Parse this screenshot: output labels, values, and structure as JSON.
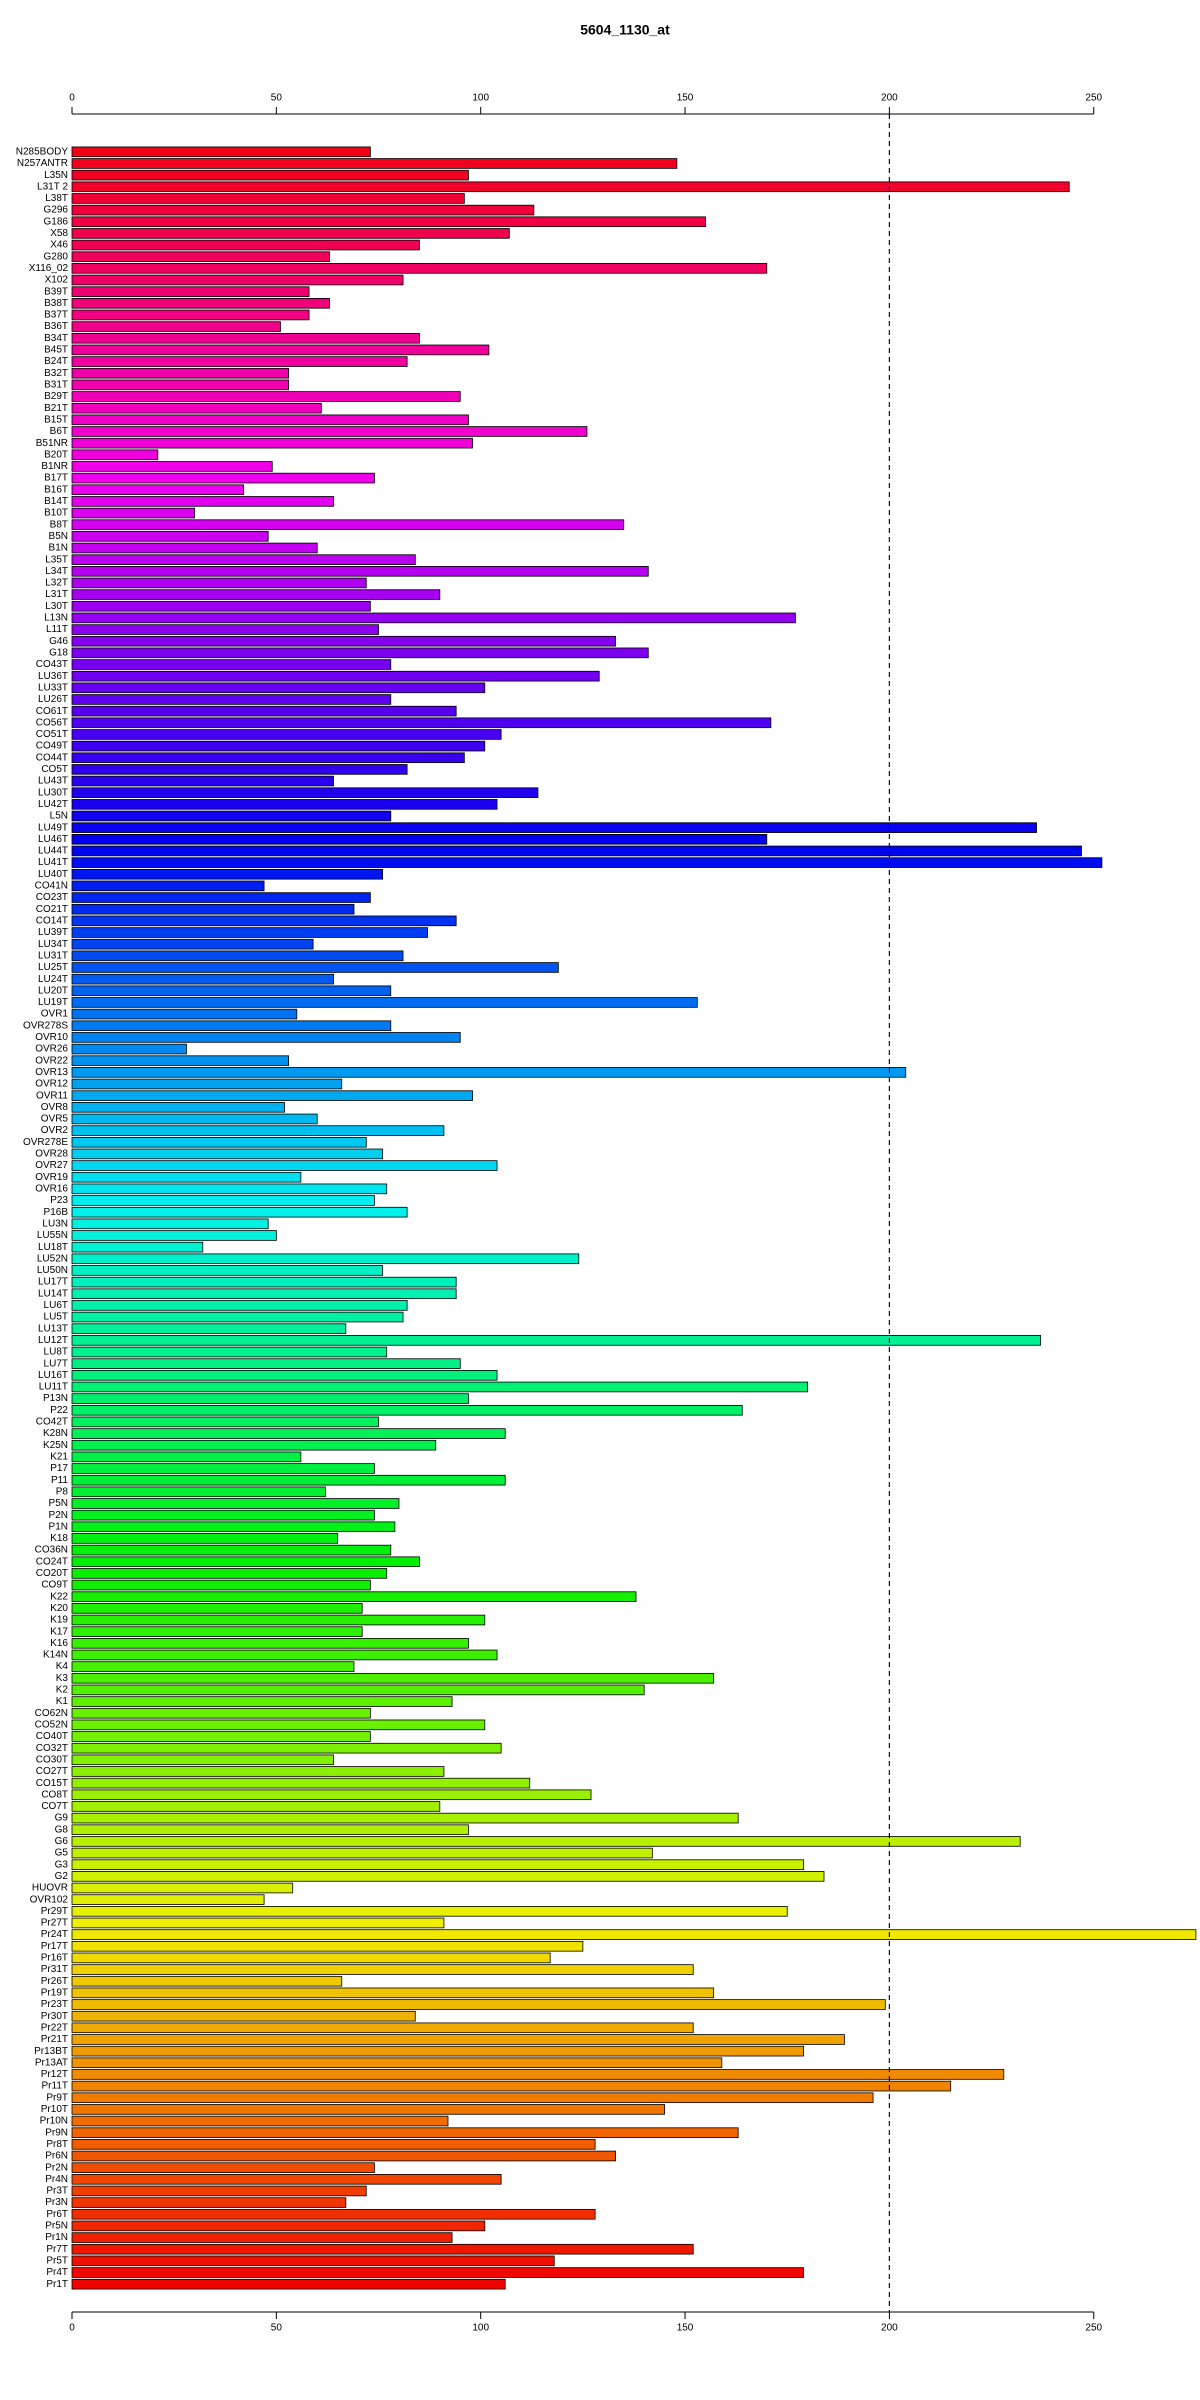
{
  "chart_data": {
    "type": "barh",
    "title": "5604_1130_at",
    "categories": [
      "N285BODY",
      "N257ANTR",
      "L35N",
      "L31T 2",
      "L38T",
      "G296",
      "G186",
      "X58",
      "X46",
      "G280",
      "X116_02",
      "X102",
      "B39T",
      "B38T",
      "B37T",
      "B36T",
      "B34T",
      "B45T",
      "B24T",
      "B32T",
      "B31T",
      "B29T",
      "B21T",
      "B15T",
      "B6T",
      "B51NR",
      "B20T",
      "B1NR",
      "B17T",
      "B16T",
      "B14T",
      "B10T",
      "B8T",
      "B5N",
      "B1N",
      "L35T",
      "L34T",
      "L32T",
      "L31T",
      "L30T",
      "L13N",
      "L11T",
      "G46",
      "G18",
      "CO43T",
      "LU36T",
      "LU33T",
      "LU26T",
      "CO61T",
      "CO56T",
      "CO51T",
      "CO49T",
      "CO44T",
      "CO5T",
      "LU43T",
      "LU30T",
      "LU42T",
      "L5N",
      "LU49T",
      "LU46T",
      "LU44T",
      "LU41T",
      "LU40T",
      "CO41N",
      "CO23T",
      "CO21T",
      "CO14T",
      "LU39T",
      "LU34T",
      "LU31T",
      "LU25T",
      "LU24T",
      "LU20T",
      "LU19T",
      "OVR1",
      "OVR278S",
      "OVR10",
      "OVR26",
      "OVR22",
      "OVR13",
      "OVR12",
      "OVR11",
      "OVR8",
      "OVR5",
      "OVR2",
      "OVR278E",
      "OVR28",
      "OVR27",
      "OVR19",
      "OVR16",
      "P23",
      "P16B",
      "LU3N",
      "LU55N",
      "LU18T",
      "LU52N",
      "LU50N",
      "LU17T",
      "LU14T",
      "LU6T",
      "LU5T",
      "LU13T",
      "LU12T",
      "LU8T",
      "LU7T",
      "LU16T",
      "LU11T",
      "P13N",
      "P22",
      "CO42T",
      "K28N",
      "K25N",
      "K21",
      "P17",
      "P11",
      "P8",
      "P5N",
      "P2N",
      "P1N",
      "K18",
      "CO36N",
      "CO24T",
      "CO20T",
      "CO9T",
      "K22",
      "K20",
      "K19",
      "K17",
      "K16",
      "K14N",
      "K4",
      "K3",
      "K2",
      "K1",
      "CO62N",
      "CO52N",
      "CO40T",
      "CO32T",
      "CO30T",
      "CO27T",
      "CO15T",
      "CO8T",
      "CO7T",
      "G9",
      "G8",
      "G6",
      "G5",
      "G3",
      "G2",
      "HUOVR",
      "OVR102",
      "Pr29T",
      "Pr27T",
      "Pr24T",
      "Pr17T",
      "Pr16T",
      "Pr31T",
      "Pr26T",
      "Pr19T",
      "Pr23T",
      "Pr30T",
      "Pr22T",
      "Pr21T",
      "Pr13BT",
      "Pr13AT",
      "Pr12T",
      "Pr11T",
      "Pr9T",
      "Pr10T",
      "Pr10N",
      "Pr9N",
      "Pr8T",
      "Pr6N",
      "Pr2N",
      "Pr4N",
      "Pr3T",
      "Pr3N",
      "Pr6T",
      "Pr5N",
      "Pr1N",
      "Pr7T",
      "Pr5T",
      "Pr4T",
      "Pr1T"
    ],
    "values": [
      73,
      148,
      97,
      244,
      96,
      113,
      155,
      107,
      85,
      63,
      170,
      81,
      58,
      63,
      58,
      51,
      85,
      102,
      82,
      53,
      53,
      95,
      61,
      97,
      126,
      98,
      21,
      49,
      74,
      42,
      64,
      30,
      135,
      48,
      60,
      84,
      141,
      72,
      90,
      73,
      177,
      75,
      133,
      141,
      78,
      129,
      101,
      78,
      94,
      171,
      105,
      101,
      96,
      82,
      64,
      114,
      104,
      78,
      236,
      170,
      247,
      252,
      76,
      47,
      73,
      69,
      94,
      87,
      59,
      81,
      119,
      64,
      78,
      153,
      55,
      78,
      95,
      28,
      53,
      204,
      66,
      98,
      52,
      60,
      91,
      72,
      76,
      104,
      56,
      77,
      74,
      82,
      48,
      50,
      32,
      124,
      76,
      94,
      94,
      82,
      81,
      67,
      237,
      77,
      95,
      104,
      180,
      97,
      164,
      75,
      106,
      89,
      56,
      74,
      106,
      62,
      80,
      74,
      79,
      65,
      78,
      85,
      77,
      73,
      138,
      71,
      101,
      71,
      97,
      104,
      69,
      157,
      140,
      93,
      73,
      101,
      73,
      105,
      64,
      91,
      112,
      127,
      90,
      163,
      97,
      232,
      142,
      179,
      184,
      54,
      47,
      175,
      91,
      275,
      125,
      117,
      152,
      66,
      157,
      199,
      84,
      152,
      189,
      179,
      159,
      228,
      215,
      196,
      145,
      92,
      163,
      128,
      133,
      74,
      105,
      72,
      67,
      128,
      101,
      93,
      152,
      118,
      179,
      106
    ],
    "reference_line": 200,
    "xlim": [
      0,
      276
    ],
    "xticks": [
      0,
      50,
      100,
      150,
      200,
      250
    ]
  }
}
